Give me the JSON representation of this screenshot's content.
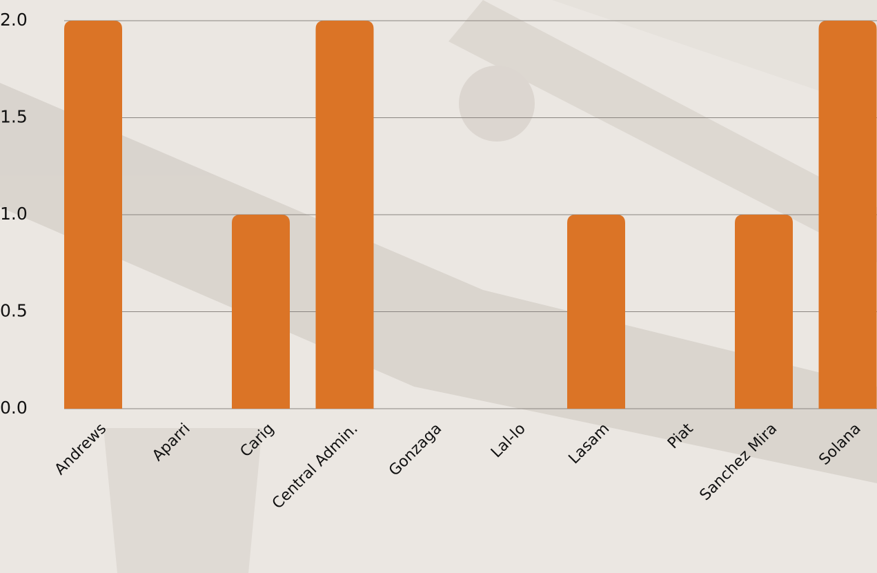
{
  "chart_data": {
    "type": "bar",
    "categories": [
      "Andrews",
      "Aparri",
      "Carig",
      "Central Admin.",
      "Gonzaga",
      "Lal-lo",
      "Lasam",
      "Piat",
      "Sanchez Mira",
      "Solana"
    ],
    "values": [
      2,
      0,
      1,
      2,
      0,
      0,
      1,
      0,
      1,
      2
    ],
    "color": "#db7426",
    "ylim": [
      0,
      2
    ],
    "yticks": [
      {
        "value": 0,
        "label": "0.0"
      },
      0.5,
      {
        "value": 1,
        "label": "1.0"
      },
      1.5,
      {
        "value": 2,
        "label": "2.0"
      }
    ],
    "grid": true
  }
}
